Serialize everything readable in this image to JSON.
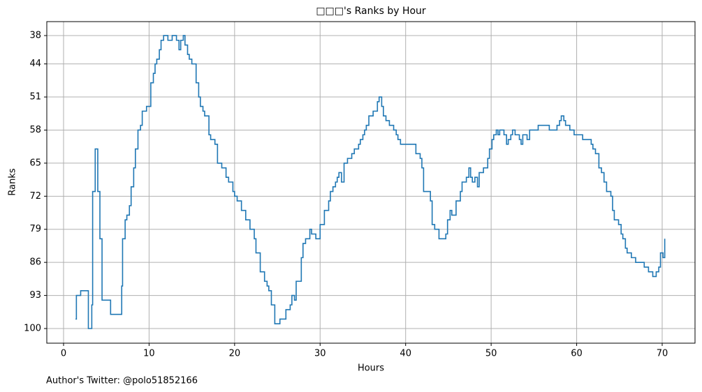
{
  "chart_data": {
    "type": "step",
    "title": "□□□'s Ranks by Hour",
    "x_label": "Hours",
    "y_label": "Ranks",
    "footer": "Author's Twitter: @polo51852166",
    "xlim": [
      -1.96,
      73.84
    ],
    "ylim": [
      103.1,
      35.05
    ],
    "inverted_y": true,
    "xticks": [
      0,
      10,
      20,
      30,
      40,
      50,
      60,
      70
    ],
    "yticks": [
      38,
      44,
      51,
      58,
      65,
      72,
      79,
      86,
      93,
      100
    ],
    "grid": true,
    "x": [
      1.4,
      1.5,
      2.0,
      2.9,
      3.3,
      3.4,
      3.7,
      4.0,
      4.25,
      4.5,
      5.5,
      6.8,
      6.9,
      7.2,
      7.4,
      7.7,
      7.9,
      8.2,
      8.4,
      8.7,
      9.0,
      9.2,
      9.7,
      10.2,
      10.5,
      10.7,
      10.9,
      11.2,
      11.4,
      11.7,
      12.2,
      12.7,
      13.2,
      13.5,
      13.7,
      14.0,
      14.2,
      14.5,
      14.7,
      15.0,
      15.5,
      15.8,
      16.0,
      16.3,
      16.5,
      17.0,
      17.2,
      17.7,
      18.0,
      18.5,
      19.0,
      19.3,
      19.8,
      20.0,
      20.3,
      20.8,
      21.3,
      21.8,
      22.3,
      22.5,
      23.0,
      23.5,
      23.8,
      24.0,
      24.3,
      24.7,
      25.3,
      26.0,
      26.5,
      26.7,
      27.0,
      27.2,
      27.8,
      28.0,
      28.3,
      28.8,
      29.0,
      29.5,
      30.0,
      30.5,
      31.0,
      31.2,
      31.5,
      31.8,
      32.0,
      32.2,
      32.5,
      32.8,
      33.2,
      33.7,
      34.0,
      34.5,
      34.7,
      35.0,
      35.2,
      35.4,
      35.7,
      36.2,
      36.7,
      36.9,
      37.2,
      37.4,
      37.7,
      38.1,
      38.6,
      38.9,
      39.1,
      39.4,
      41.2,
      41.7,
      41.9,
      42.1,
      42.9,
      43.1,
      43.4,
      43.9,
      44.7,
      44.9,
      45.2,
      45.4,
      45.9,
      46.4,
      46.6,
      47.1,
      47.4,
      47.6,
      47.8,
      48.1,
      48.4,
      48.6,
      49.1,
      49.6,
      49.8,
      50.1,
      50.3,
      50.6,
      50.8,
      51.0,
      51.5,
      51.8,
      52.0,
      52.3,
      52.5,
      52.8,
      53.3,
      53.5,
      53.7,
      54.2,
      54.5,
      55.5,
      56.8,
      57.7,
      58.0,
      58.2,
      58.5,
      58.7,
      59.2,
      59.7,
      60.7,
      61.7,
      61.9,
      62.2,
      62.6,
      62.9,
      63.2,
      63.5,
      64.0,
      64.2,
      64.4,
      64.9,
      65.2,
      65.4,
      65.7,
      65.9,
      66.4,
      66.9,
      67.9,
      68.4,
      68.9,
      69.3,
      69.6,
      69.8,
      70.1,
      70.3
    ],
    "series": [
      {
        "color": "#1f77b4",
        "values": [
          98,
          93,
          92,
          100,
          95,
          71,
          62,
          71,
          81,
          94,
          97,
          91,
          81,
          77,
          76,
          74,
          70,
          66,
          62,
          58,
          57,
          54,
          53,
          48,
          46,
          44,
          43,
          41,
          39,
          38,
          39,
          38,
          39,
          41,
          39,
          38,
          40,
          42,
          43,
          44,
          48,
          51,
          53,
          54,
          55,
          59,
          60,
          61,
          65,
          66,
          68,
          69,
          71,
          72,
          73,
          75,
          77,
          79,
          81,
          84,
          88,
          90,
          91,
          92,
          95,
          99,
          98,
          96,
          95,
          93,
          94,
          90,
          85,
          82,
          81,
          79,
          80,
          81,
          78,
          75,
          73,
          71,
          70,
          69,
          68,
          67,
          69,
          65,
          64,
          63,
          62,
          61,
          60,
          59,
          58,
          57,
          55,
          54,
          52,
          51,
          53,
          55,
          56,
          57,
          58,
          59,
          60,
          61,
          63,
          64,
          66,
          71,
          73,
          78,
          79,
          81,
          80,
          77,
          75,
          76,
          73,
          71,
          69,
          68,
          66,
          68,
          69,
          68,
          70,
          67,
          66,
          64,
          62,
          60,
          59,
          58,
          59,
          58,
          59,
          61,
          60,
          59,
          58,
          59,
          60,
          61,
          59,
          60,
          58,
          57,
          58,
          57,
          56,
          55,
          56,
          57,
          58,
          59,
          60,
          61,
          62,
          63,
          66,
          67,
          69,
          71,
          72,
          75,
          77,
          78,
          80,
          81,
          83,
          84,
          85,
          86,
          87,
          88,
          89,
          88,
          87,
          84,
          85,
          81
        ]
      }
    ]
  }
}
